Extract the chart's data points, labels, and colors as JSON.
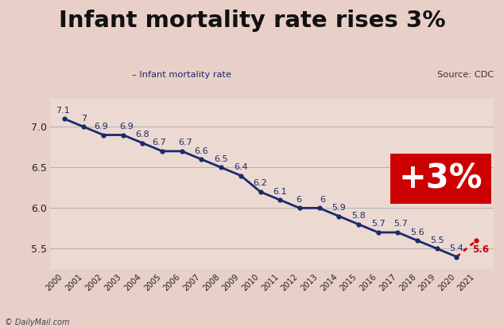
{
  "title": "Infant mortality rate rises 3%",
  "source": "Source: CDC",
  "legend_label": "– Infant mortality rate",
  "annotation": "+3%",
  "years": [
    2000,
    2001,
    2002,
    2003,
    2004,
    2005,
    2006,
    2007,
    2008,
    2009,
    2010,
    2011,
    2012,
    2013,
    2014,
    2015,
    2016,
    2017,
    2018,
    2019,
    2020,
    2021
  ],
  "values": [
    7.1,
    7.0,
    6.9,
    6.9,
    6.8,
    6.7,
    6.7,
    6.6,
    6.5,
    6.4,
    6.2,
    6.1,
    6.0,
    6.0,
    5.9,
    5.8,
    5.7,
    5.7,
    5.6,
    5.5,
    5.4,
    5.6
  ],
  "main_line_color": "#1a2b6b",
  "rise_line_color": "#cc0000",
  "dot_color": "#1a2b6b",
  "last_dot_color": "#cc0000",
  "annotation_bg": "#cc0000",
  "annotation_text_color": "#ffffff",
  "label_color": "#1a2b6b",
  "bg_color": "#e8d0c8",
  "ylim_min": 5.25,
  "ylim_max": 7.35,
  "yticks": [
    5.5,
    6.0,
    6.5,
    7.0
  ],
  "title_fontsize": 21,
  "label_fontsize": 8,
  "watermark": "© DailyMail.com"
}
